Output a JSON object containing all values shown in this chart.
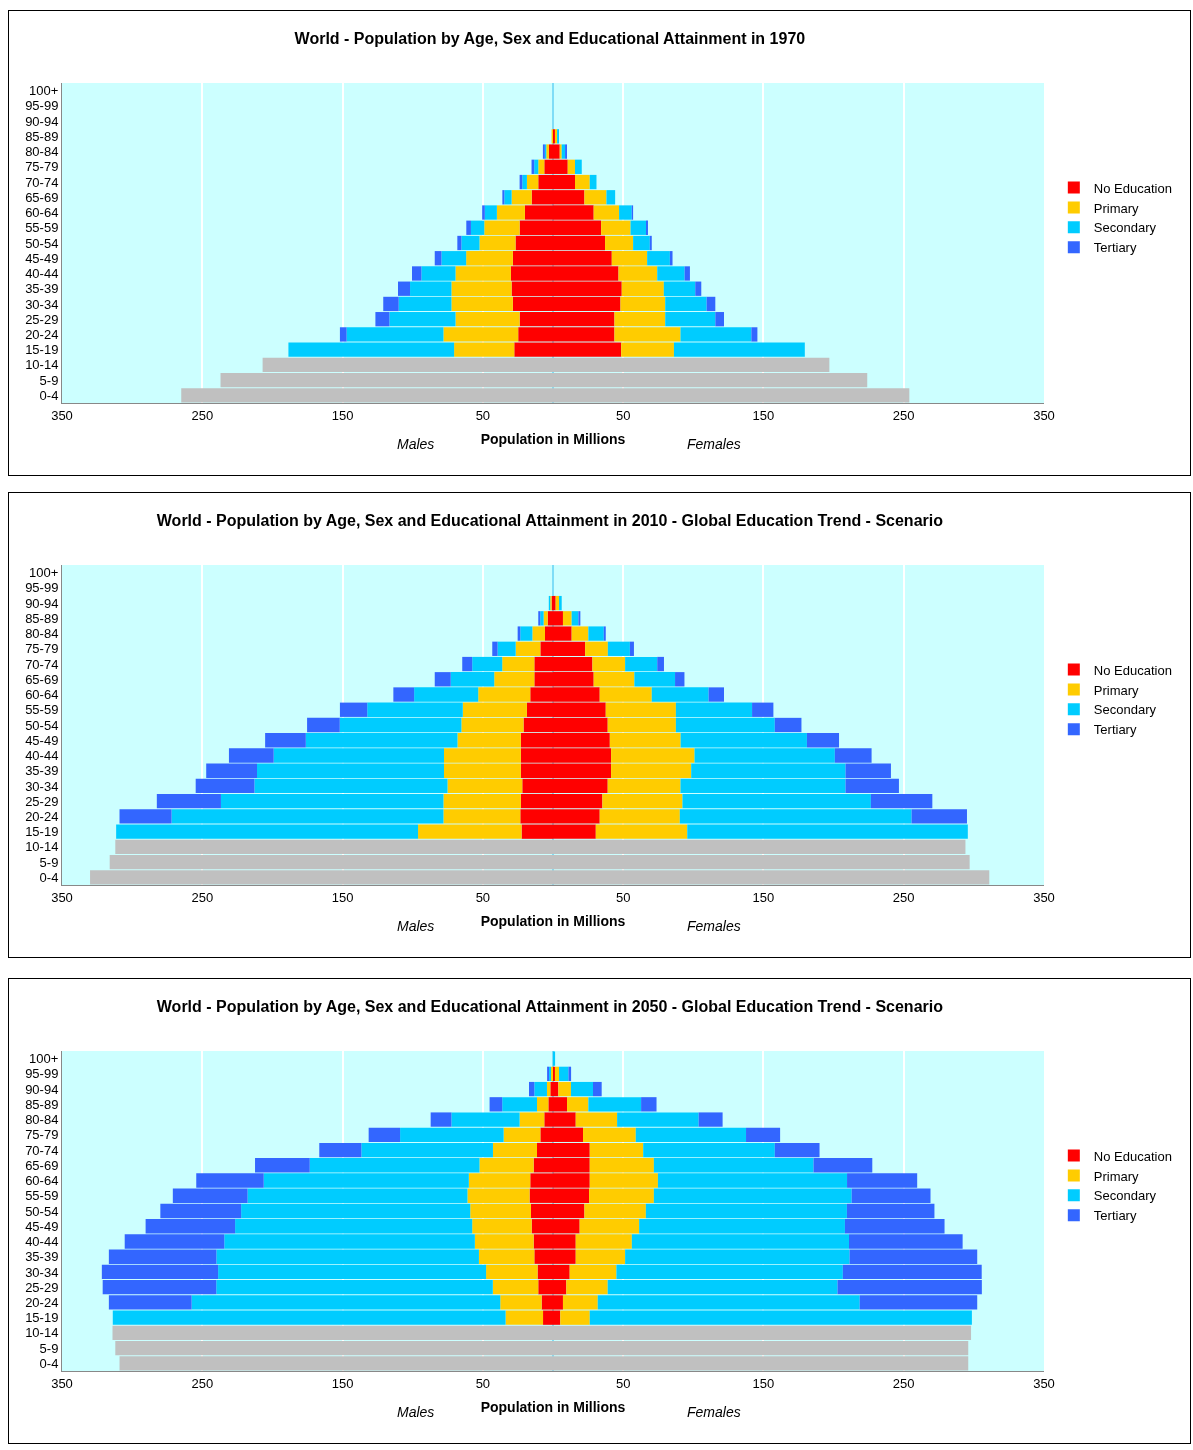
{
  "chart_data": [
    {
      "type": "bar",
      "title": "World - Population by Age, Sex and Educational Attainment in 1970",
      "xlabel": "Population in Millions",
      "orientation": "horizontal",
      "stacked": true,
      "grid": "x",
      "legend": "right",
      "annotations": [
        "Males",
        "Females"
      ],
      "categories": [
        "100+",
        "95-99",
        "90-94",
        "85-89",
        "80-84",
        "75-79",
        "70-74",
        "65-69",
        "60-64",
        "55-59",
        "50-54",
        "45-49",
        "40-44",
        "35-39",
        "30-34",
        "25-29",
        "20-24",
        "15-19",
        "10-14",
        "5-9",
        "0-4"
      ],
      "xlim": [
        -350,
        350
      ],
      "xticks": [
        {
          "value": -350,
          "label": "350"
        },
        {
          "value": -250,
          "label": "250"
        },
        {
          "value": -150,
          "label": "150"
        },
        {
          "value": -50,
          "label": "50"
        },
        50,
        150,
        250,
        350
      ],
      "ref_lines": [
        {
          "axis": "x",
          "value": 0,
          "color": "#33bbee"
        }
      ],
      "series": [
        {
          "name": "No Education",
          "color": "#ff0000",
          "values": [
            null,
            null,
            null,
            null,
            -2.9,
            -6.2,
            -10.5,
            -15.2,
            -20,
            -23.8,
            -26.7,
            -28.6,
            -30,
            -29.5,
            -28.6,
            -23.8,
            -24.8,
            -27.6,
            null,
            null,
            null
          ]
        },
        {
          "name": "Primary",
          "color": "#ffcc00",
          "values": [
            null,
            null,
            null,
            -1,
            -1.9,
            -4.3,
            -8.1,
            -14.3,
            -20,
            -25.2,
            -25.7,
            -33.3,
            -39.5,
            -42.9,
            -43.8,
            -45.7,
            -53.3,
            -42.9,
            null,
            null,
            null
          ]
        },
        {
          "name": "Secondary",
          "color": "#00ccff",
          "values": [
            null,
            null,
            null,
            null,
            -1,
            -2.9,
            -3.3,
            -5.2,
            -8.6,
            -9.5,
            -12.9,
            -17.6,
            -24.3,
            -29.5,
            -37.6,
            -47.1,
            -69,
            -118.1,
            null,
            null,
            null
          ]
        },
        {
          "name": "Tertiary",
          "color": "#3366ff",
          "values": [
            null,
            null,
            null,
            null,
            -1.4,
            -1.9,
            -1.9,
            -1.4,
            -1.9,
            -3.3,
            -2.9,
            -4.8,
            -6.7,
            -8.6,
            -11,
            -10,
            -4.8,
            null,
            null,
            null,
            null
          ]
        },
        {
          "color": "#c0c0c0",
          "values": [
            null,
            null,
            null,
            null,
            null,
            null,
            null,
            null,
            null,
            null,
            null,
            null,
            null,
            null,
            null,
            null,
            null,
            null,
            -207,
            -237,
            -265
          ]
        },
        {
          "color": "#ff0000",
          "values": [
            null,
            null,
            null,
            1.4,
            4.8,
            10.5,
            15.7,
            22.4,
            29,
            34.3,
            37.1,
            41.9,
            46.7,
            49,
            48.1,
            43.8,
            43.8,
            48.6,
            null,
            null,
            null
          ]
        },
        {
          "color": "#ffcc00",
          "values": [
            null,
            null,
            null,
            1.5,
            1.4,
            5.2,
            10.5,
            15.7,
            18.1,
            21,
            20,
            25.2,
            27.6,
            30,
            31.9,
            36.2,
            47.1,
            37.6,
            null,
            null,
            null
          ]
        },
        {
          "color": "#00ccff",
          "values": [
            null,
            null,
            null,
            1.4,
            2.4,
            4.8,
            4.8,
            6.2,
            9,
            11,
            11.9,
            16.2,
            19.5,
            22.4,
            29.5,
            35.7,
            50.5,
            93.3,
            null,
            null,
            null
          ]
        },
        {
          "color": "#3366ff",
          "values": [
            null,
            null,
            null,
            null,
            1.4,
            null,
            null,
            null,
            1,
            1.4,
            1.4,
            1.9,
            3.8,
            4.3,
            6.2,
            6.2,
            4.3,
            null,
            null,
            null,
            null
          ]
        },
        {
          "color": "#c0c0c0",
          "values": [
            null,
            null,
            null,
            null,
            null,
            null,
            null,
            null,
            null,
            null,
            null,
            null,
            null,
            null,
            null,
            null,
            null,
            null,
            197,
            224,
            254
          ]
        }
      ]
    },
    {
      "type": "bar",
      "title": "World - Population by Age, Sex and Educational Attainment in 2010 - Global Education Trend - Scenario",
      "xlabel": "Population in Millions",
      "orientation": "horizontal",
      "stacked": true,
      "grid": "x",
      "legend": "right",
      "annotations": [
        "Males",
        "Females"
      ],
      "categories": [
        "100+",
        "95-99",
        "90-94",
        "85-89",
        "80-84",
        "75-79",
        "70-74",
        "65-69",
        "60-64",
        "55-59",
        "50-54",
        "45-49",
        "40-44",
        "35-39",
        "30-34",
        "25-29",
        "20-24",
        "15-19",
        "10-14",
        "5-9",
        "0-4"
      ],
      "xlim": [
        -350,
        350
      ],
      "xticks": [
        {
          "value": -350,
          "label": "350"
        },
        {
          "value": -250,
          "label": "250"
        },
        {
          "value": -150,
          "label": "150"
        },
        {
          "value": -50,
          "label": "50"
        },
        50,
        150,
        250,
        350
      ],
      "ref_lines": [
        {
          "axis": "x",
          "value": 0,
          "color": "#33bbee"
        }
      ],
      "series": [
        {
          "name": "No Education",
          "color": "#ff0000",
          "values": [
            null,
            null,
            -1,
            -3.8,
            -5.7,
            -9,
            -13.3,
            -13.3,
            -16.2,
            -18.6,
            -21,
            -22.9,
            -22.9,
            -22.9,
            -21.9,
            -22.9,
            -23.3,
            -22.4,
            null,
            null,
            null
          ]
        },
        {
          "name": "Primary",
          "color": "#ffcc00",
          "values": [
            null,
            null,
            -1,
            -2.9,
            -9,
            -17.6,
            -22.9,
            -28.6,
            -37.1,
            -45.7,
            -44.3,
            -45.2,
            -54.8,
            -54.8,
            -53.3,
            -55.2,
            -54.8,
            -73.8,
            null,
            null,
            null
          ]
        },
        {
          "name": "Secondary",
          "color": "#00ccff",
          "values": [
            null,
            null,
            -1,
            -2.4,
            -8.6,
            -12.9,
            -21.4,
            -31,
            -45.7,
            -68.1,
            -86.7,
            -108.1,
            -121.4,
            -133.3,
            -137.6,
            -158.6,
            -193.8,
            -215.2,
            null,
            null,
            null
          ]
        },
        {
          "name": "Tertiary",
          "color": "#3366ff",
          "values": [
            null,
            null,
            null,
            -1.4,
            -1.9,
            -3.8,
            -7.1,
            -11.4,
            -14.8,
            -19.5,
            -23.3,
            -29,
            -31.9,
            -36.2,
            -41.9,
            -45.7,
            -37.1,
            null,
            null,
            null,
            null
          ]
        },
        {
          "color": "#c0c0c0",
          "values": [
            null,
            null,
            null,
            null,
            null,
            null,
            null,
            null,
            null,
            null,
            null,
            null,
            null,
            null,
            null,
            null,
            null,
            null,
            -312,
            -316,
            -330
          ]
        },
        {
          "color": "#ff0000",
          "values": [
            null,
            null,
            1.9,
            7.1,
            13.3,
            22.9,
            28.1,
            29,
            33.3,
            37.6,
            39,
            40.5,
            41.4,
            41.4,
            39,
            35.2,
            33.3,
            30.5,
            null,
            null,
            null
          ]
        },
        {
          "color": "#ffcc00",
          "values": [
            null,
            null,
            2.4,
            6.2,
            11.9,
            16.2,
            23.3,
            29,
            37.1,
            50,
            48.6,
            50.5,
            59.5,
            57.1,
            51.9,
            57.1,
            57.1,
            65.2,
            null,
            null,
            null
          ]
        },
        {
          "color": "#00ccff",
          "values": [
            null,
            null,
            1.9,
            4.8,
            11,
            15.7,
            22.9,
            29,
            40.5,
            54.3,
            70.5,
            90,
            100,
            110,
            117.6,
            134.3,
            165.2,
            200,
            null,
            null,
            null
          ]
        },
        {
          "color": "#3366ff",
          "values": [
            null,
            null,
            null,
            1.4,
            1.4,
            2.9,
            4.8,
            6.7,
            11,
            15.2,
            19,
            22.9,
            26.2,
            32.4,
            38.1,
            43.8,
            39.5,
            null,
            null,
            null,
            null
          ]
        },
        {
          "color": "#c0c0c0",
          "values": [
            null,
            null,
            null,
            null,
            null,
            null,
            null,
            null,
            null,
            null,
            null,
            null,
            null,
            null,
            null,
            null,
            null,
            null,
            294,
            297,
            311
          ]
        }
      ]
    },
    {
      "type": "bar",
      "title": "World - Population by Age, Sex and Educational Attainment in 2050 - Global Education Trend - Scenario",
      "xlabel": "Population in Millions",
      "orientation": "horizontal",
      "stacked": true,
      "grid": "x",
      "legend": "right",
      "annotations": [
        "Males",
        "Females"
      ],
      "categories": [
        "100+",
        "95-99",
        "90-94",
        "85-89",
        "80-84",
        "75-79",
        "70-74",
        "65-69",
        "60-64",
        "55-59",
        "50-54",
        "45-49",
        "40-44",
        "35-39",
        "30-34",
        "25-29",
        "20-24",
        "15-19",
        "10-14",
        "5-9",
        "0-4"
      ],
      "xlim": [
        -350,
        350
      ],
      "xticks": [
        {
          "value": -350,
          "label": "350"
        },
        {
          "value": -250,
          "label": "250"
        },
        {
          "value": -150,
          "label": "150"
        },
        {
          "value": -50,
          "label": "50"
        },
        50,
        150,
        250,
        350
      ],
      "ref_lines": [
        {
          "axis": "x",
          "value": 0,
          "color": "#33bbee"
        }
      ],
      "series": [
        {
          "name": "No Education",
          "color": "#ff0000",
          "values": [
            null,
            null,
            -1.9,
            -3.3,
            -6.2,
            -9,
            -11.4,
            -13.8,
            -16.2,
            -16.7,
            -15.7,
            -15.2,
            -13.8,
            -13.3,
            -11,
            -10.5,
            -8.1,
            -7.1,
            null,
            null,
            null
          ]
        },
        {
          "name": "Primary",
          "color": "#ffcc00",
          "values": [
            null,
            -1.4,
            -2.4,
            -8.1,
            -17.6,
            -26.2,
            -31.4,
            -38.6,
            -43.8,
            -44.3,
            -43.3,
            -42.4,
            -41.9,
            -39.5,
            -36.7,
            -32.4,
            -29.5,
            -26.7,
            null,
            null,
            null
          ]
        },
        {
          "name": "Secondary",
          "color": "#00ccff",
          "values": [
            null,
            -1.4,
            -9,
            -24.8,
            -48.6,
            -73.8,
            -93.8,
            -121,
            -146.2,
            -156.7,
            -163.3,
            -169,
            -178.6,
            -187.1,
            -191,
            -197.1,
            -220,
            -280,
            null,
            null,
            null
          ]
        },
        {
          "name": "Tertiary",
          "color": "#3366ff",
          "values": [
            null,
            -1.4,
            -3.8,
            -9,
            -14.8,
            -22.4,
            -30,
            -39,
            -48.1,
            -53.3,
            -57.6,
            -63.8,
            -71,
            -76.7,
            -82.9,
            -81,
            -59,
            null,
            null,
            null,
            null
          ]
        },
        {
          "color": "#c0c0c0",
          "values": [
            null,
            null,
            null,
            null,
            null,
            null,
            null,
            null,
            null,
            null,
            null,
            null,
            null,
            null,
            null,
            null,
            null,
            null,
            -314,
            -312,
            -309
          ]
        },
        {
          "color": "#ff0000",
          "values": [
            null,
            1.4,
            3.8,
            10,
            16.2,
            21.4,
            26.2,
            26.2,
            26.2,
            25.7,
            22.4,
            19,
            16.2,
            16.2,
            11.9,
            9.5,
            7.1,
            5.2,
            null,
            null,
            null
          ]
        },
        {
          "color": "#ffcc00",
          "values": [
            null,
            2.9,
            9,
            15.2,
            29.5,
            37.6,
            38.1,
            45.7,
            48.6,
            46.2,
            43.8,
            42.4,
            40,
            35.2,
            33.3,
            29.5,
            24.8,
            21,
            null,
            null,
            null
          ]
        },
        {
          "color": "#00ccff",
          "values": [
            1.5,
            6.7,
            15.7,
            37.6,
            58.1,
            78.6,
            93.8,
            113.8,
            134.8,
            141,
            143.3,
            146.7,
            154.8,
            160,
            161.4,
            163.8,
            186.7,
            272.4,
            null,
            null,
            null
          ]
        },
        {
          "color": "#3366ff",
          "values": [
            null,
            1.9,
            6.2,
            11,
            17.1,
            24.3,
            31.9,
            41.9,
            50,
            56.2,
            62.4,
            71,
            81,
            91,
            99,
            102.9,
            83.8,
            null,
            null,
            null,
            null
          ]
        },
        {
          "color": "#c0c0c0",
          "values": [
            null,
            null,
            null,
            null,
            null,
            null,
            null,
            null,
            null,
            null,
            null,
            null,
            null,
            null,
            null,
            null,
            null,
            null,
            298,
            296,
            296
          ]
        }
      ]
    }
  ]
}
